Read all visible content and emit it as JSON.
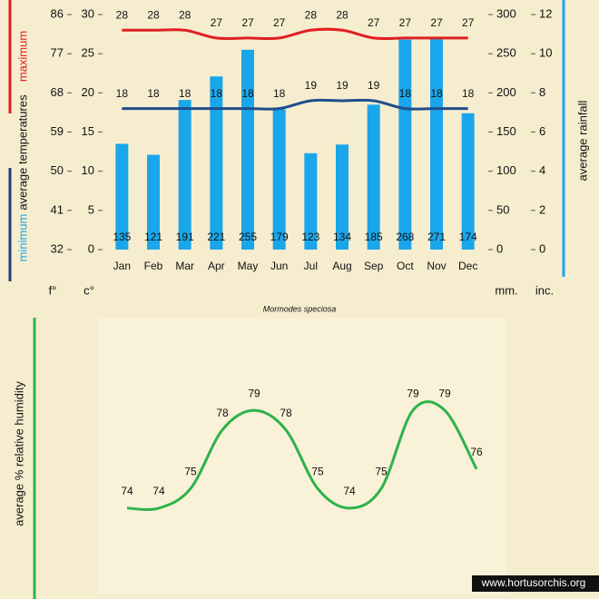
{
  "chart_data": [
    {
      "type": "combo",
      "axis_labels": {
        "fahrenheit": "f°",
        "celsius": "c°",
        "mm": "mm.",
        "inches": "inc.",
        "temperatures": "average  temperatures",
        "maximum": "maximum",
        "minimum": "minimum",
        "rainfall": "average rainfall"
      },
      "categories": [
        "Jan",
        "Feb",
        "Mar",
        "Apr",
        "May",
        "Jun",
        "Jul",
        "Aug",
        "Sep",
        "Oct",
        "Nov",
        "Dec"
      ],
      "series": [
        {
          "name": "rainfall",
          "type": "bar",
          "axis": "y2",
          "color": "#1aa6ea",
          "values": [
            135,
            121,
            191,
            221,
            255,
            179,
            123,
            134,
            185,
            268,
            271,
            174
          ]
        },
        {
          "name": "maximum",
          "type": "line",
          "color": "#e02020",
          "values": [
            28,
            28,
            28,
            27,
            27,
            27,
            28,
            28,
            27,
            27,
            27,
            27
          ]
        },
        {
          "name": "minimum",
          "type": "line",
          "color": "#1f4e8c",
          "values": [
            18,
            18,
            18,
            18,
            18,
            18,
            19,
            19,
            19,
            18,
            18,
            18
          ]
        }
      ],
      "ylim": [
        0,
        30
      ],
      "yticks": [
        0,
        5,
        10,
        15,
        20,
        25,
        30
      ],
      "y3lim": [
        32,
        86
      ],
      "y3ticks": [
        32,
        41,
        50,
        59,
        68,
        77,
        86
      ],
      "y2lim": [
        0,
        300
      ],
      "y2ticks": [
        0,
        50,
        100,
        150,
        200,
        250,
        300
      ],
      "y4lim": [
        0,
        12
      ],
      "y4ticks": [
        0,
        2,
        4,
        6,
        8,
        10,
        12
      ],
      "caption": "Mormodes speciosa"
    },
    {
      "type": "line",
      "ylabel": "average %  relative humidity",
      "series": [
        {
          "name": "humidity",
          "color": "#2db34a",
          "values": [
            74,
            74,
            75,
            78,
            79,
            78,
            75,
            74,
            75,
            79,
            79,
            76
          ]
        }
      ],
      "ylim": [
        72,
        81
      ],
      "watermark": "www.hortusorchis.org"
    }
  ]
}
